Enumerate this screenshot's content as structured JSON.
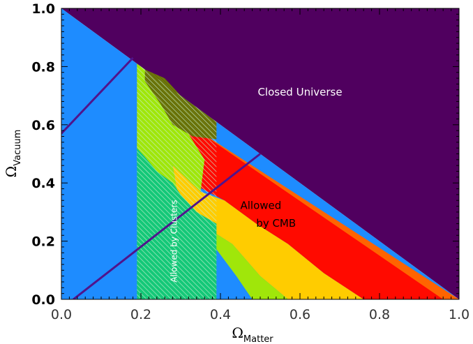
{
  "chart_data": {
    "type": "area",
    "title": "",
    "xlabel": {
      "symbol": "Ω",
      "subscript": "Matter"
    },
    "ylabel": {
      "symbol": "Ω",
      "subscript": "Vacuum"
    },
    "xlim": [
      0.0,
      1.0
    ],
    "ylim": [
      0.0,
      1.0
    ],
    "x_tick_labels": [
      "0.0",
      "0.2",
      "0.4",
      "0.6",
      "0.8",
      "1.0"
    ],
    "y_tick_labels": [
      "0.0",
      "0.2",
      "0.4",
      "0.6",
      "0.8",
      "1.0"
    ],
    "grid": false,
    "colors": {
      "closed": "#50005f",
      "open": "#1e8cff",
      "light_green": "#a0e60a",
      "yellow": "#ffcc00",
      "orange": "#ff6400",
      "red": "#ff0a00",
      "olive": "#6e780a",
      "cluster_green": "#14c878",
      "cluster_hatch": "#c8f0d2",
      "dark_line": "#50148c"
    },
    "regions": [
      {
        "name": "closed",
        "points": [
          [
            0.0,
            1.0
          ],
          [
            1.0,
            1.0
          ],
          [
            1.0,
            0.0
          ]
        ]
      },
      {
        "name": "open",
        "points": [
          [
            0.0,
            0.0
          ],
          [
            0.0,
            1.0
          ],
          [
            1.0,
            0.0
          ]
        ]
      },
      {
        "name": "orange",
        "points": [
          [
            0.31,
            0.61
          ],
          [
            1.0,
            0.0
          ],
          [
            0.96,
            0.0
          ],
          [
            0.75,
            0.12
          ],
          [
            0.66,
            0.19
          ],
          [
            0.56,
            0.28
          ],
          [
            0.47,
            0.39
          ],
          [
            0.36,
            0.48
          ],
          [
            0.31,
            0.59
          ]
        ]
      },
      {
        "name": "red",
        "points": [
          [
            0.31,
            0.61
          ],
          [
            0.96,
            0.0
          ],
          [
            0.76,
            0.0
          ],
          [
            0.66,
            0.09
          ],
          [
            0.57,
            0.19
          ],
          [
            0.49,
            0.26
          ],
          [
            0.41,
            0.34
          ],
          [
            0.34,
            0.39
          ],
          [
            0.31,
            0.46
          ]
        ]
      },
      {
        "name": "yellow",
        "points": [
          [
            0.28,
            0.46
          ],
          [
            0.35,
            0.37
          ],
          [
            0.41,
            0.34
          ],
          [
            0.49,
            0.26
          ],
          [
            0.57,
            0.19
          ],
          [
            0.66,
            0.09
          ],
          [
            0.76,
            0.0
          ],
          [
            0.57,
            0.0
          ],
          [
            0.5,
            0.08
          ],
          [
            0.43,
            0.19
          ],
          [
            0.35,
            0.26
          ],
          [
            0.3,
            0.3
          ]
        ]
      },
      {
        "name": "light_green",
        "points": [
          [
            0.19,
            0.81
          ],
          [
            0.31,
            0.69
          ],
          [
            0.31,
            0.59
          ],
          [
            0.36,
            0.48
          ],
          [
            0.35,
            0.37
          ],
          [
            0.28,
            0.46
          ],
          [
            0.3,
            0.3
          ],
          [
            0.35,
            0.26
          ],
          [
            0.43,
            0.19
          ],
          [
            0.5,
            0.08
          ],
          [
            0.57,
            0.0
          ],
          [
            0.48,
            0.0
          ],
          [
            0.44,
            0.08
          ],
          [
            0.38,
            0.19
          ],
          [
            0.32,
            0.3
          ],
          [
            0.25,
            0.4
          ],
          [
            0.19,
            0.47
          ]
        ]
      },
      {
        "name": "olive",
        "points": [
          [
            0.21,
            0.79
          ],
          [
            0.26,
            0.76
          ],
          [
            0.3,
            0.7
          ],
          [
            0.39,
            0.61
          ],
          [
            0.39,
            0.55
          ],
          [
            0.33,
            0.56
          ],
          [
            0.28,
            0.6
          ],
          [
            0.25,
            0.67
          ],
          [
            0.21,
            0.75
          ]
        ]
      },
      {
        "name": "cluster_green",
        "points": [
          [
            0.19,
            0.0
          ],
          [
            0.39,
            0.0
          ],
          [
            0.39,
            0.26
          ],
          [
            0.34,
            0.3
          ],
          [
            0.3,
            0.36
          ],
          [
            0.28,
            0.4
          ],
          [
            0.24,
            0.44
          ],
          [
            0.21,
            0.49
          ],
          [
            0.19,
            0.52
          ]
        ]
      }
    ],
    "clusters_band": [
      0.19,
      0.39
    ],
    "lines": [
      {
        "name": "upper-line",
        "x": [
          0.0,
          0.18
        ],
        "y": [
          0.57,
          0.83
        ]
      },
      {
        "name": "lower-line",
        "x": [
          0.03,
          0.5
        ],
        "y": [
          0.0,
          0.5
        ]
      }
    ],
    "annotations": [
      {
        "name": "closed-universe-label",
        "text": "Closed Universe",
        "x": 0.6,
        "y": 0.7
      },
      {
        "name": "cmb-label-line1",
        "text": "Allowed",
        "x": 0.45,
        "y": 0.31
      },
      {
        "name": "cmb-label-line2",
        "text": "by CMB",
        "x": 0.49,
        "y": 0.25
      },
      {
        "name": "clusters-label",
        "text": "Allowed by Clusters",
        "x": 0.29,
        "y": 0.2
      }
    ]
  }
}
